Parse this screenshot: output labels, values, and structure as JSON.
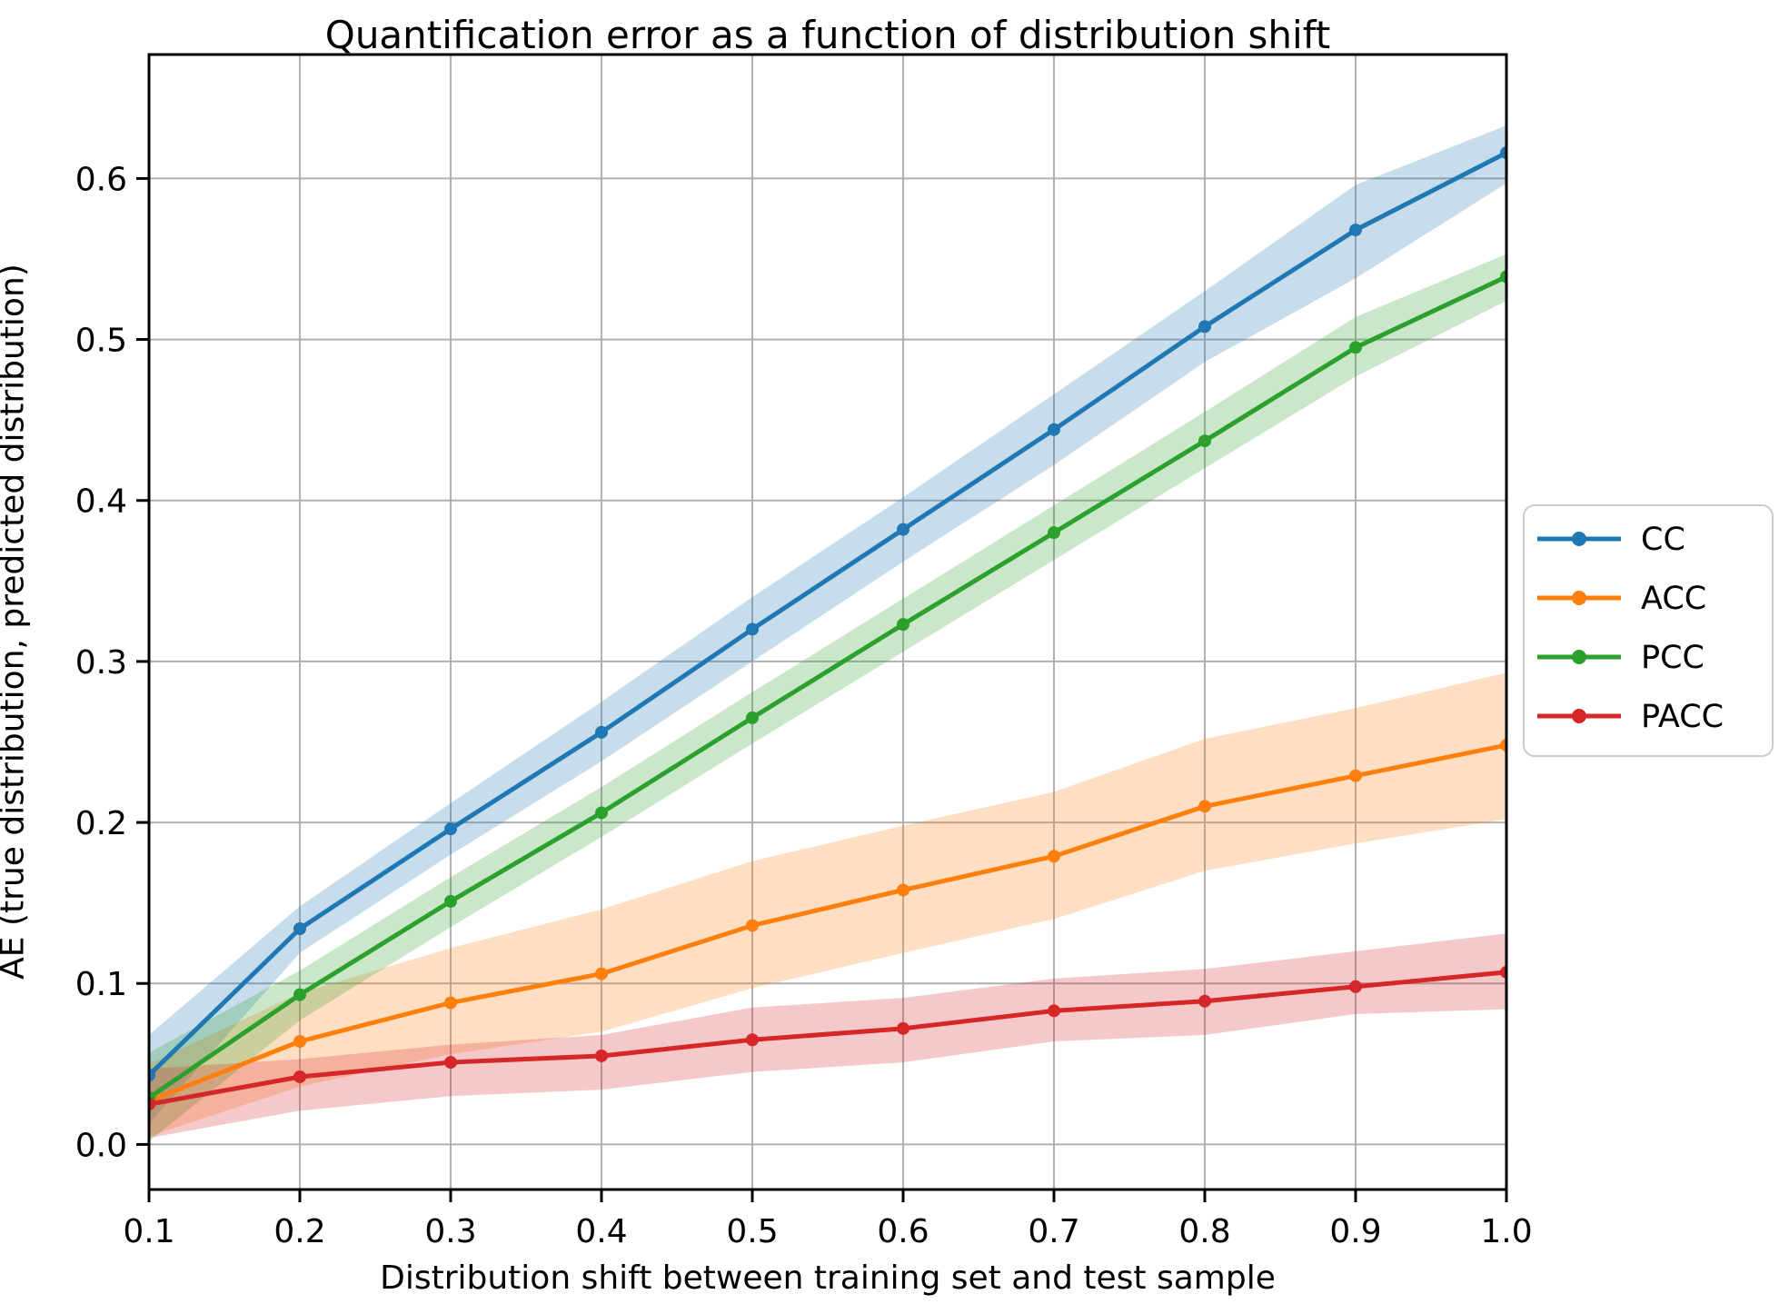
{
  "figure": {
    "background": "#ffffff",
    "grid_color": "#b0b0b0",
    "spine_color": "#000000",
    "legend_border_color": "#cccccc"
  },
  "chart_data": {
    "type": "line",
    "title": "Quantification error as a function of distribution shift",
    "xlabel": "Distribution shift between training set and test sample",
    "ylabel": "AE (true distribution, predicted distribution)",
    "x": [
      0.1,
      0.2,
      0.3,
      0.4,
      0.5,
      0.6,
      0.7,
      0.8,
      0.9,
      1.0
    ],
    "xtick_labels": [
      "0.1",
      "0.2",
      "0.3",
      "0.4",
      "0.5",
      "0.6",
      "0.7",
      "0.8",
      "0.9",
      "1.0"
    ],
    "ytick_values": [
      0.0,
      0.1,
      0.2,
      0.3,
      0.4,
      0.5,
      0.6
    ],
    "ytick_labels": [
      "0.0",
      "0.1",
      "0.2",
      "0.3",
      "0.4",
      "0.5",
      "0.6"
    ],
    "xlim": [
      0.1,
      1.0
    ],
    "ylim": [
      -0.028,
      0.677
    ],
    "grid": true,
    "legend_position": "outside-center-right",
    "band_opacity": 0.25,
    "series": [
      {
        "name": "CC",
        "color": "#1f77b4",
        "values": [
          0.043,
          0.134,
          0.196,
          0.256,
          0.32,
          0.382,
          0.444,
          0.508,
          0.568,
          0.616
        ],
        "band_upper": [
          0.068,
          0.148,
          0.212,
          0.275,
          0.34,
          0.402,
          0.466,
          0.53,
          0.596,
          0.633
        ],
        "band_lower": [
          0.013,
          0.119,
          0.18,
          0.238,
          0.3,
          0.362,
          0.422,
          0.486,
          0.538,
          0.597
        ]
      },
      {
        "name": "ACC",
        "color": "#ff7f0e",
        "values": [
          0.027,
          0.064,
          0.088,
          0.106,
          0.136,
          0.158,
          0.179,
          0.21,
          0.229,
          0.248
        ],
        "band_upper": [
          0.05,
          0.094,
          0.122,
          0.146,
          0.176,
          0.198,
          0.219,
          0.252,
          0.271,
          0.293
        ],
        "band_lower": [
          0.005,
          0.036,
          0.056,
          0.07,
          0.097,
          0.119,
          0.14,
          0.17,
          0.187,
          0.202
        ]
      },
      {
        "name": "PCC",
        "color": "#2ca02c",
        "values": [
          0.029,
          0.093,
          0.151,
          0.206,
          0.265,
          0.323,
          0.38,
          0.437,
          0.495,
          0.539
        ],
        "band_upper": [
          0.057,
          0.108,
          0.166,
          0.222,
          0.281,
          0.339,
          0.397,
          0.455,
          0.514,
          0.553
        ],
        "band_lower": [
          0.002,
          0.077,
          0.135,
          0.191,
          0.249,
          0.306,
          0.363,
          0.42,
          0.477,
          0.524
        ]
      },
      {
        "name": "PACC",
        "color": "#d62728",
        "values": [
          0.025,
          0.042,
          0.051,
          0.055,
          0.065,
          0.072,
          0.083,
          0.089,
          0.098,
          0.107
        ],
        "band_upper": [
          0.047,
          0.053,
          0.062,
          0.068,
          0.085,
          0.091,
          0.103,
          0.109,
          0.12,
          0.131
        ],
        "band_lower": [
          0.004,
          0.021,
          0.03,
          0.034,
          0.045,
          0.051,
          0.064,
          0.068,
          0.081,
          0.084
        ]
      }
    ]
  }
}
